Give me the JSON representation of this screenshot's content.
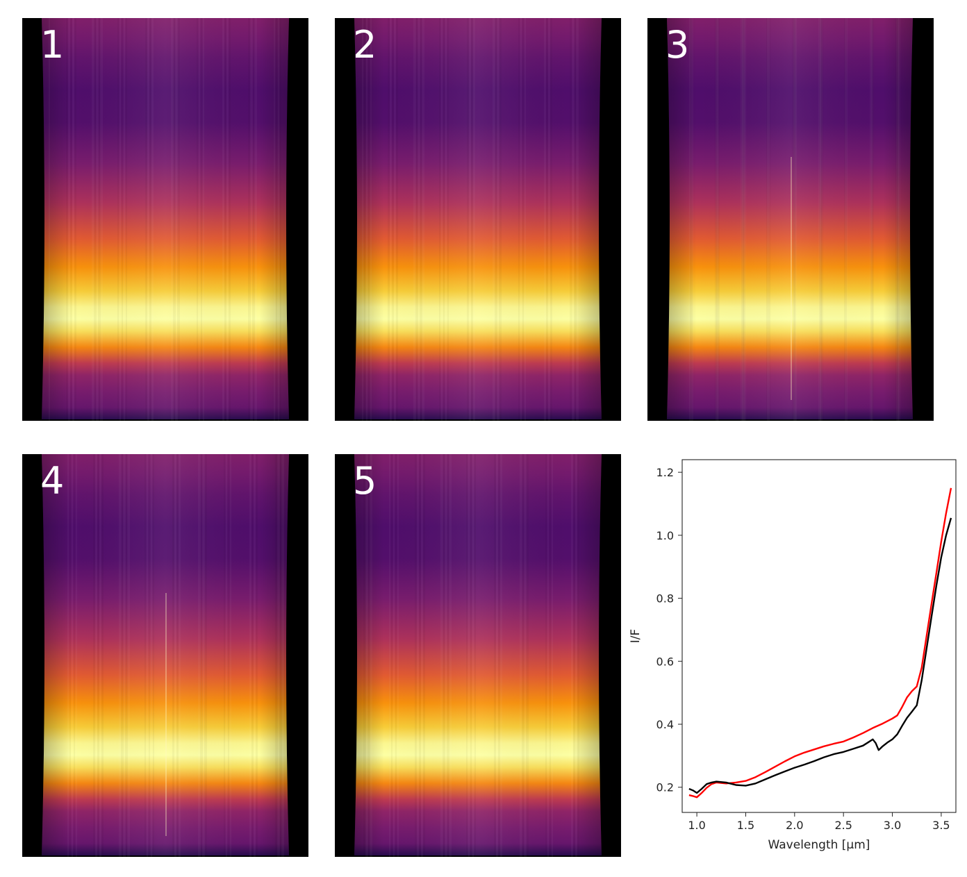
{
  "panels": [
    {
      "label": "1"
    },
    {
      "label": "2"
    },
    {
      "label": "3"
    },
    {
      "label": "4"
    },
    {
      "label": "5"
    }
  ],
  "colors": {
    "colormap": [
      "#000004",
      "#1b0c41",
      "#4a0c6b",
      "#781c6d",
      "#a52c60",
      "#cf4446",
      "#ed6925",
      "#fb9b06",
      "#f7d13d",
      "#fcffa4"
    ],
    "series_red": "#ff0000",
    "series_black": "#000000"
  },
  "chart_data": {
    "type": "line",
    "title": "",
    "xlabel": "Wavelength [μm]",
    "ylabel": "I/F",
    "xlim": [
      0.85,
      3.65
    ],
    "ylim": [
      0.12,
      1.24
    ],
    "xticks": [
      "1.0",
      "1.5",
      "2.0",
      "2.5",
      "3.0",
      "3.5"
    ],
    "yticks": [
      "0.2",
      "0.4",
      "0.6",
      "0.8",
      "1.0",
      "1.2"
    ],
    "grid": false,
    "series": [
      {
        "color": "red",
        "x": [
          0.92,
          0.96,
          1.0,
          1.05,
          1.1,
          1.15,
          1.2,
          1.3,
          1.4,
          1.5,
          1.6,
          1.7,
          1.8,
          1.9,
          2.0,
          2.1,
          2.2,
          2.3,
          2.4,
          2.5,
          2.6,
          2.7,
          2.8,
          2.9,
          3.0,
          3.05,
          3.1,
          3.15,
          3.2,
          3.25,
          3.3,
          3.35,
          3.4,
          3.45,
          3.5,
          3.55,
          3.6
        ],
        "y": [
          0.175,
          0.172,
          0.168,
          0.182,
          0.198,
          0.21,
          0.215,
          0.212,
          0.215,
          0.22,
          0.232,
          0.248,
          0.265,
          0.282,
          0.298,
          0.31,
          0.32,
          0.33,
          0.338,
          0.345,
          0.358,
          0.372,
          0.388,
          0.402,
          0.418,
          0.428,
          0.455,
          0.485,
          0.505,
          0.52,
          0.58,
          0.68,
          0.78,
          0.88,
          0.98,
          1.07,
          1.15
        ]
      },
      {
        "color": "black",
        "x": [
          0.92,
          0.96,
          1.0,
          1.05,
          1.1,
          1.15,
          1.2,
          1.3,
          1.4,
          1.5,
          1.6,
          1.7,
          1.8,
          1.9,
          2.0,
          2.1,
          2.2,
          2.3,
          2.4,
          2.5,
          2.6,
          2.7,
          2.75,
          2.8,
          2.83,
          2.86,
          2.9,
          2.95,
          3.0,
          3.05,
          3.1,
          3.15,
          3.2,
          3.25,
          3.3,
          3.35,
          3.4,
          3.45,
          3.5,
          3.55,
          3.6
        ],
        "y": [
          0.195,
          0.19,
          0.182,
          0.195,
          0.21,
          0.215,
          0.218,
          0.215,
          0.207,
          0.205,
          0.212,
          0.225,
          0.238,
          0.25,
          0.262,
          0.272,
          0.283,
          0.295,
          0.305,
          0.312,
          0.322,
          0.332,
          0.342,
          0.352,
          0.34,
          0.318,
          0.33,
          0.342,
          0.352,
          0.368,
          0.395,
          0.42,
          0.44,
          0.46,
          0.54,
          0.64,
          0.74,
          0.84,
          0.93,
          1.0,
          1.055
        ]
      }
    ]
  }
}
